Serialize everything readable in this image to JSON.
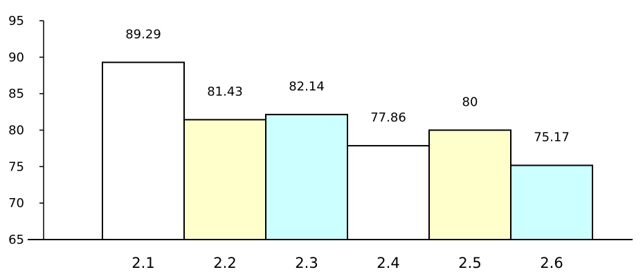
{
  "chart_data": {
    "type": "bar",
    "categories": [
      "2.1",
      "2.2",
      "2.3",
      "2.4",
      "2.5",
      "2.6"
    ],
    "values": [
      89.29,
      81.43,
      82.14,
      77.86,
      80,
      75.17
    ],
    "data_labels": [
      "89.29",
      "81.43",
      "82.14",
      "77.86",
      "80",
      "75.17"
    ],
    "bar_colors": [
      "#ffffff",
      "#ffffcc",
      "#ccffff",
      "#ffffff",
      "#ffffcc",
      "#ccffff"
    ],
    "ylim": [
      65,
      95
    ],
    "yticks": [
      65,
      70,
      75,
      80,
      85,
      90,
      95
    ],
    "ytick_labels": [
      "65",
      "70",
      "75",
      "80",
      "85",
      "90",
      "95"
    ],
    "title": "",
    "xlabel": "",
    "ylabel": "",
    "grid": false,
    "legend": false
  }
}
